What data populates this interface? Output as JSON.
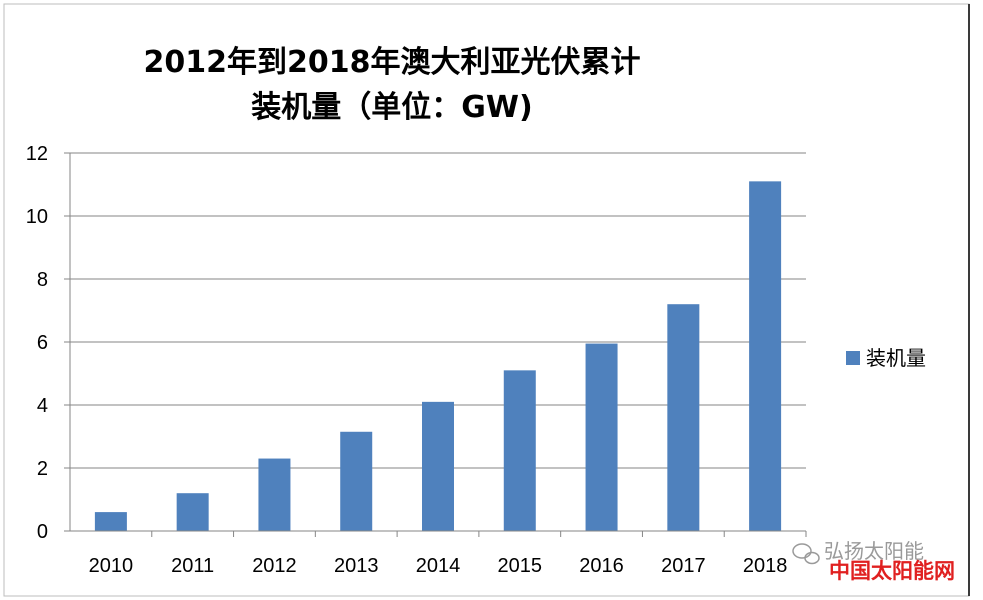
{
  "chart_data": {
    "type": "bar",
    "title_line1": "2012年到2018年澳大利亚光伏累计",
    "title_line2": "装机量（单位：GW)",
    "categories": [
      "2010",
      "2011",
      "2012",
      "2013",
      "2014",
      "2015",
      "2016",
      "2017",
      "2018"
    ],
    "series": [
      {
        "name": "装机量",
        "values": [
          0.6,
          1.2,
          2.3,
          3.15,
          4.1,
          5.1,
          5.95,
          7.2,
          11.1
        ],
        "color": "#4f81bd"
      }
    ],
    "ylim": [
      0,
      12
    ],
    "yticks": [
      "0",
      "2",
      "4",
      "6",
      "8",
      "10",
      "12"
    ],
    "grid": true,
    "legend_position": "right"
  },
  "watermark": {
    "wechat_text": "弘扬太阳能",
    "site_text": "中国太阳能网"
  }
}
